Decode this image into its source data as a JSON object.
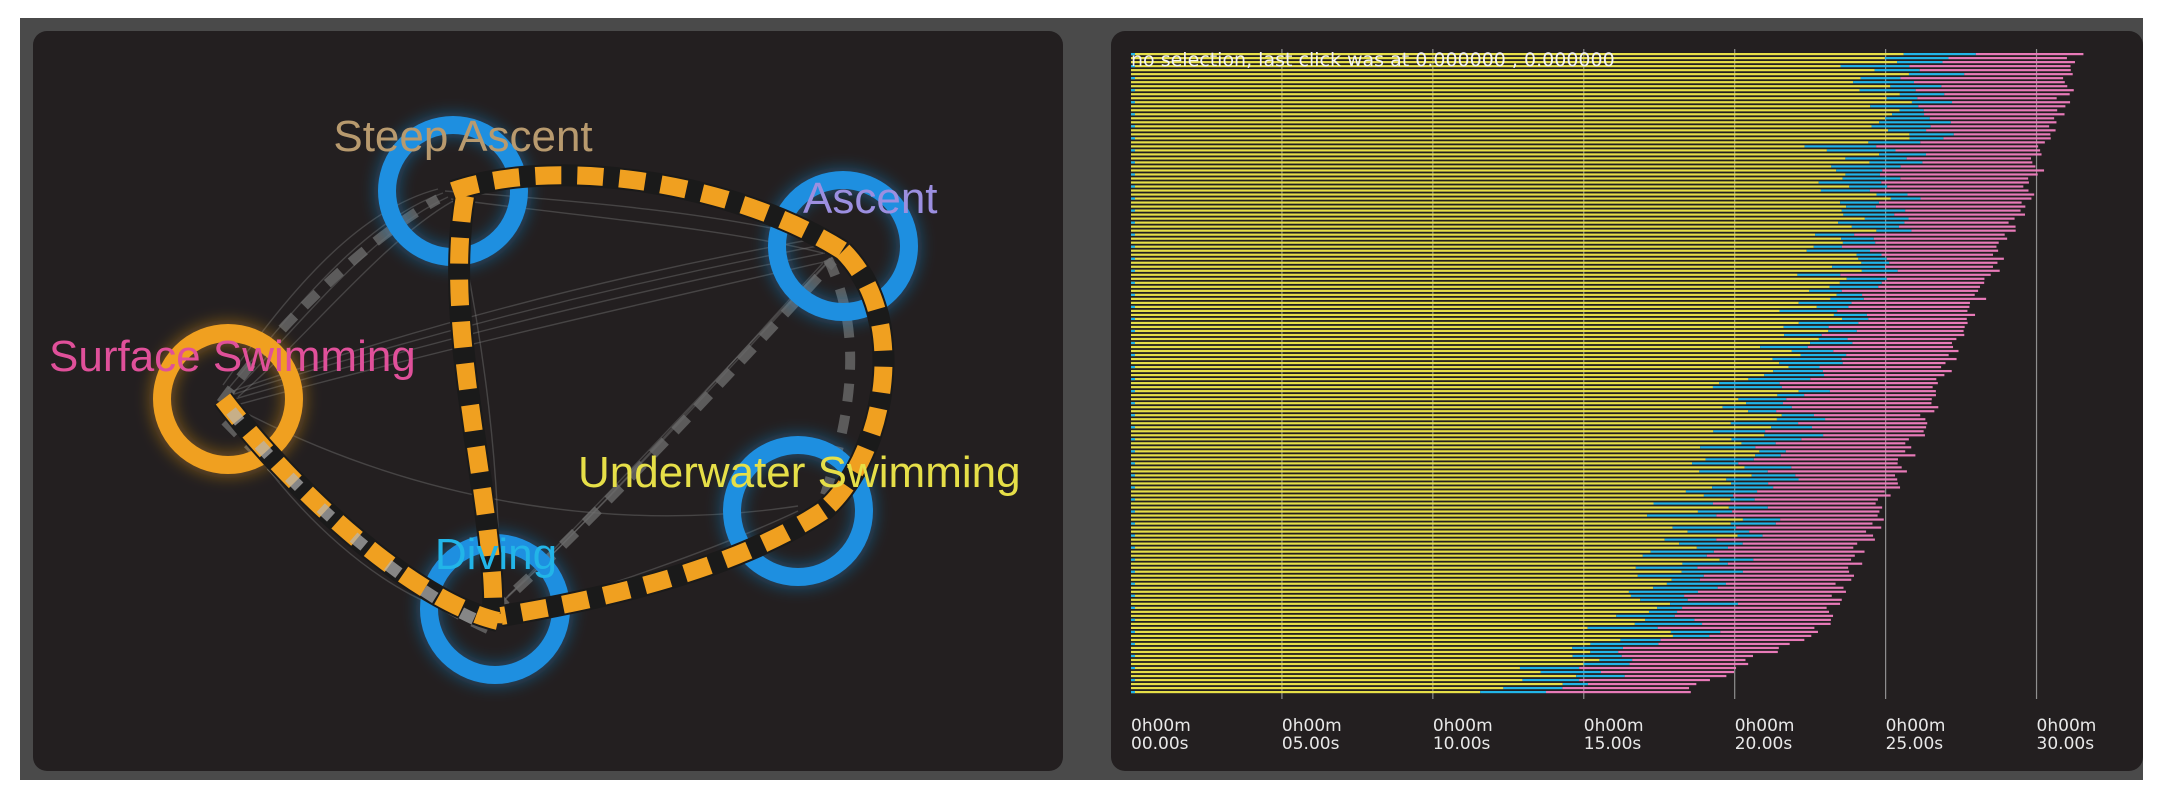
{
  "graph": {
    "nodes": [
      {
        "id": "steep-ascent",
        "label": "Steep Ascent",
        "label_color": "#b89a6e",
        "ring_color": "#1e8fe0"
      },
      {
        "id": "ascent",
        "label": "Ascent",
        "label_color": "#9c8fe0",
        "ring_color": "#1e8fe0"
      },
      {
        "id": "surface-swimming",
        "label": "Surface Swimming",
        "label_color": "#e0509a",
        "ring_color": "#f0a020"
      },
      {
        "id": "underwater-swimming",
        "label": "Underwater Swimming",
        "label_color": "#e6df48",
        "ring_color": "#1e8fe0"
      },
      {
        "id": "diving",
        "label": "Diving",
        "label_color": "#22b5e8",
        "ring_color": "#1e8fe0"
      }
    ],
    "edge_colors": {
      "primary": "#f0a020",
      "secondary": "#505050"
    }
  },
  "timeline": {
    "selection_text": "no selection, last click was at 0.000000 , 0.000000",
    "ticks": [
      {
        "line1": "0h00m",
        "line2": "00.00s"
      },
      {
        "line1": "0h00m",
        "line2": "05.00s"
      },
      {
        "line1": "0h00m",
        "line2": "10.00s"
      },
      {
        "line1": "0h00m",
        "line2": "15.00s"
      },
      {
        "line1": "0h00m",
        "line2": "20.00s"
      },
      {
        "line1": "0h00m",
        "line2": "25.00s"
      },
      {
        "line1": "0h00m",
        "line2": "30.00s"
      }
    ],
    "bar_colors": {
      "underwater": "#e6df48",
      "diving": "#22b5e8",
      "surface": "#e87ab8"
    },
    "bar_count": 160
  }
}
